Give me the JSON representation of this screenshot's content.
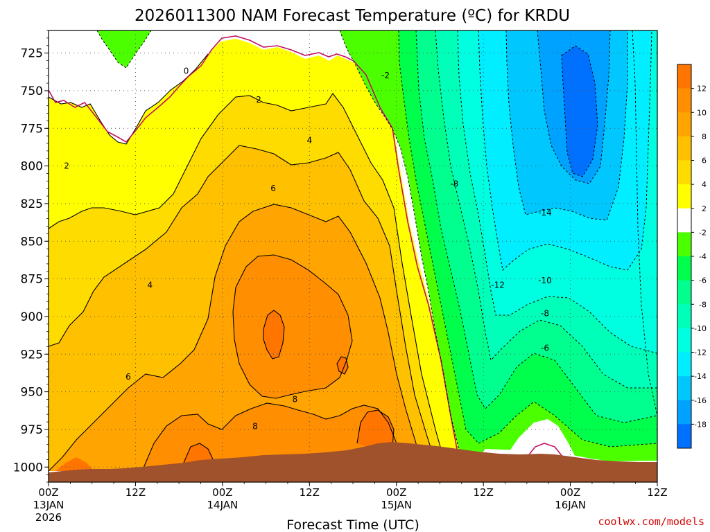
{
  "chart_data": {
    "type": "heatmap",
    "title": "2026011300 NAM Forecast Temperature (ºC) for KRDU",
    "xlabel": "Forecast Time (UTC)",
    "ylabel": "",
    "credit": "coolwx.com/models",
    "ylim": [
      1010,
      710
    ],
    "y_ticks": [
      "725",
      "750",
      "775",
      "800",
      "825",
      "850",
      "875",
      "900",
      "925",
      "950",
      "975",
      "1000"
    ],
    "x_ticks": [
      {
        "hour": 0,
        "l1": "00Z",
        "l2": "13JAN",
        "l3": "2026"
      },
      {
        "hour": 12,
        "l1": "12Z",
        "l2": "",
        "l3": ""
      },
      {
        "hour": 24,
        "l1": "00Z",
        "l2": "14JAN",
        "l3": ""
      },
      {
        "hour": 36,
        "l1": "12Z",
        "l2": "",
        "l3": ""
      },
      {
        "hour": 48,
        "l1": "00Z",
        "l2": "15JAN",
        "l3": ""
      },
      {
        "hour": 60,
        "l1": "12Z",
        "l2": "",
        "l3": ""
      },
      {
        "hour": 72,
        "l1": "00Z",
        "l2": "16JAN",
        "l3": ""
      },
      {
        "hour": 84,
        "l1": "12Z",
        "l2": "",
        "l3": ""
      }
    ],
    "colorbar": {
      "colors": [
        "#ff7500",
        "#ff8e00",
        "#ffa400",
        "#ffc000",
        "#ffdc00",
        "#ffff00",
        "#ffffff",
        "#4cff00",
        "#00ff4c",
        "#00ff8e",
        "#00ffb9",
        "#00ffe0",
        "#00eeff",
        "#00c8ff",
        "#00a2ff",
        "#0070ff"
      ],
      "labels": [
        "12",
        "10",
        "8",
        "6",
        "4",
        "2",
        "-2",
        "-4",
        "-6",
        "-8",
        "-10",
        "-12",
        "-14",
        "-16",
        "-18"
      ]
    },
    "contour_labels": [
      {
        "text": "0",
        "hour": 19.0,
        "p": 737
      },
      {
        "text": "-2",
        "hour": 46.5,
        "p": 740
      },
      {
        "text": "2",
        "hour": 2.5,
        "p": 800
      },
      {
        "text": "2",
        "hour": 29.0,
        "p": 756
      },
      {
        "text": "4",
        "hour": 36.0,
        "p": 783
      },
      {
        "text": "4",
        "hour": 14.0,
        "p": 879
      },
      {
        "text": "6",
        "hour": 31.0,
        "p": 815
      },
      {
        "text": "6",
        "hour": 11.0,
        "p": 940
      },
      {
        "text": "8",
        "hour": 34.0,
        "p": 955
      },
      {
        "text": "8",
        "hour": 28.5,
        "p": 973
      },
      {
        "text": "-8",
        "hour": 56.0,
        "p": 812
      },
      {
        "text": "-14",
        "hour": 68.5,
        "p": 831
      },
      {
        "text": "-12",
        "hour": 62.0,
        "p": 879
      },
      {
        "text": "-10",
        "hour": 68.5,
        "p": 876
      },
      {
        "text": "-8",
        "hour": 68.5,
        "p": 898
      },
      {
        "text": "-6",
        "hour": 68.5,
        "p": 921
      }
    ]
  }
}
